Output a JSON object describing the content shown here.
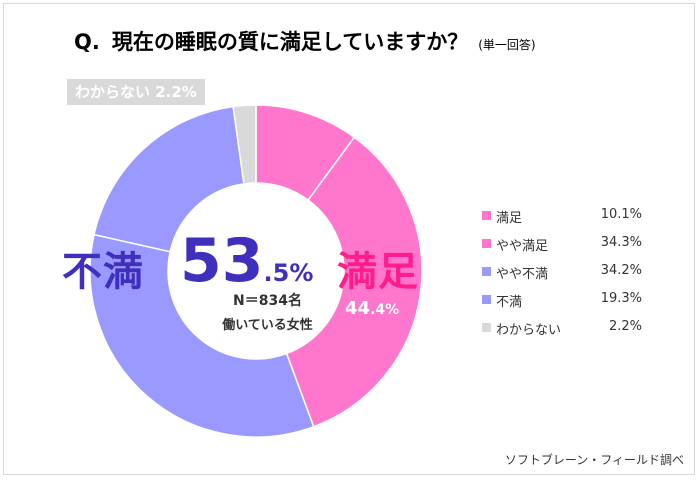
{
  "title": {
    "q": "Q.",
    "text": "現在の睡眠の質に満足していますか？",
    "note": "(単一回答)"
  },
  "colors": {
    "satisfied": "#ff77cc",
    "somewhat_satisfied": "#ff77cc",
    "somewhat_dissatisfied": "#9999ff",
    "dissatisfied": "#9999ff",
    "dont_know": "#d9d9d9",
    "satisfied_text": "#ff1d8b",
    "dissatisfied_text": "#3f2fbd"
  },
  "chart_data": {
    "type": "pie",
    "donut": true,
    "slices": [
      {
        "label": "満足",
        "value": 10.1,
        "display": "10.1%"
      },
      {
        "label": "やや満足",
        "value": 34.3,
        "display": "34.3%"
      },
      {
        "label": "やや不満",
        "value": 34.2,
        "display": "34.2%"
      },
      {
        "label": "不満",
        "value": 19.3,
        "display": "19.3%"
      },
      {
        "label": "わからない",
        "value": 2.2,
        "display": "2.2%"
      }
    ],
    "groups": {
      "dissatisfied": {
        "word": "不満",
        "int": "53",
        "dec": ".5%"
      },
      "satisfied": {
        "word": "満足",
        "int": "44",
        "dec": ".4%"
      }
    },
    "dont_know_label": "わからない 2.2%",
    "center": {
      "n": "N＝834名",
      "subtitle": "働いている女性"
    },
    "legend_placement": "right"
  },
  "source": "ソフトブレーン・フィールド調べ"
}
